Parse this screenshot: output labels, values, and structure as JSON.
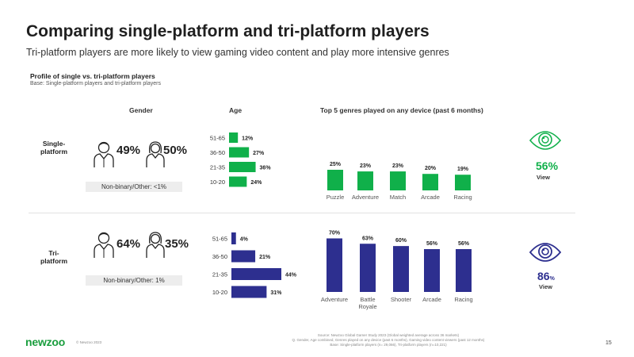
{
  "header": {
    "title": "Comparing single-platform and tri-platform players",
    "subtitle": "Tri-platform players are more likely to view gaming video content and play more intensive genres",
    "profile_title": "Profile of single vs. tri-platform players",
    "profile_base": "Base: Single-platform players and tri-platform players"
  },
  "columns": {
    "gender": "Gender",
    "age": "Age",
    "genres": "Top 5 genres played on any device (past 6 months)"
  },
  "single": {
    "label_line1": "Single-",
    "label_line2": "platform",
    "male_pct": "49%",
    "female_pct": "50%",
    "nonbinary": "Non-binary/Other: <1%",
    "view_pct": "56%",
    "view_label": "View"
  },
  "tri": {
    "label_line1": "Tri-",
    "label_line2": "platform",
    "male_pct": "64%",
    "female_pct": "35%",
    "nonbinary": "Non-binary/Other: 1%",
    "view_pct": "86",
    "view_pct_unit": "%",
    "view_label": "View"
  },
  "colors": {
    "single": "#10b04a",
    "tri": "#2d2f8f"
  },
  "chart_data": [
    {
      "type": "bar",
      "orientation": "horizontal",
      "group": "Single-platform",
      "categories": [
        "51-65",
        "36-50",
        "21-35",
        "10-20"
      ],
      "values": [
        12,
        27,
        36,
        24
      ],
      "labels": [
        "12%",
        "27%",
        "36%",
        "24%"
      ],
      "xlim": [
        0,
        44
      ]
    },
    {
      "type": "bar",
      "orientation": "horizontal",
      "group": "Tri-platform",
      "categories": [
        "51-65",
        "36-50",
        "21-35",
        "10-20"
      ],
      "values": [
        4,
        21,
        44,
        31
      ],
      "labels": [
        "4%",
        "21%",
        "44%",
        "31%"
      ],
      "xlim": [
        0,
        44
      ]
    },
    {
      "type": "bar",
      "group": "Single-platform",
      "categories": [
        "Puzzle",
        "Adventure",
        "Match",
        "Arcade",
        "Racing"
      ],
      "values": [
        25,
        23,
        23,
        20,
        19
      ],
      "labels": [
        "25%",
        "23%",
        "23%",
        "20%",
        "19%"
      ],
      "ylim": [
        0,
        70
      ]
    },
    {
      "type": "bar",
      "group": "Tri-platform",
      "categories": [
        "Adventure",
        "Battle\nRoyale",
        "Shooter",
        "Arcade",
        "Racing"
      ],
      "values": [
        70,
        63,
        60,
        56,
        56
      ],
      "labels": [
        "70%",
        "63%",
        "60%",
        "56%",
        "56%"
      ],
      "ylim": [
        0,
        70
      ]
    }
  ],
  "footer": {
    "logo": "newzoo",
    "copyright": "© Newzoo 2023",
    "source_line1": "Source: Newzoo Global Gamer Study 2023 (Global weighted average across 36 markets)",
    "source_line2": "Q. Gender, Age combined, Genres played on any device (past 6 months), Gaming video content viewers (past 12 months)",
    "source_line3": "Base: Single-platform players (n= 29,066), Tri-platform players (n=10,221)",
    "page": "15"
  }
}
